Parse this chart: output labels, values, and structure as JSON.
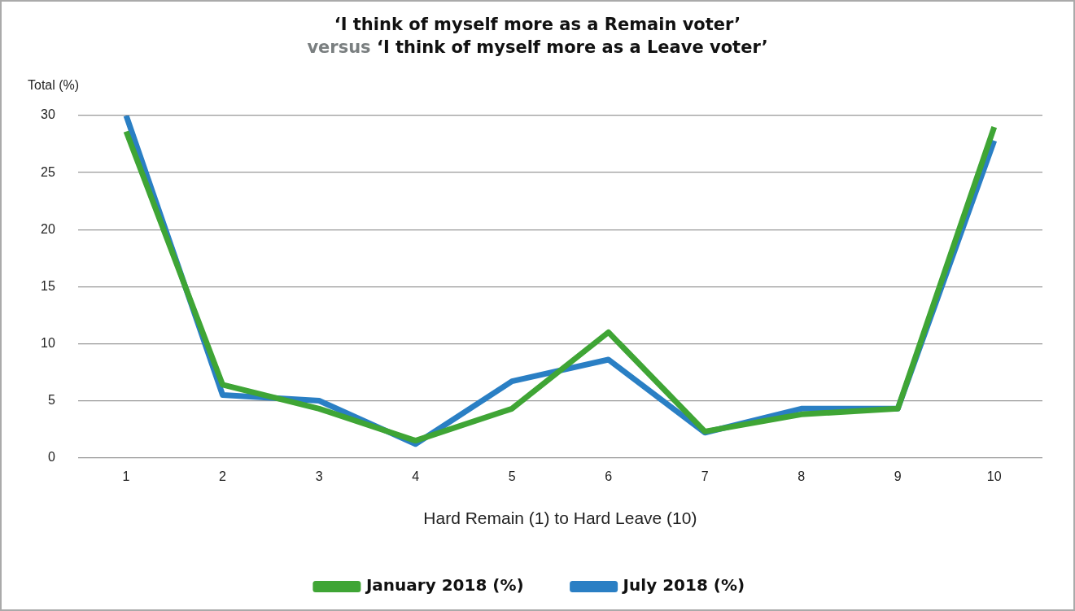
{
  "chart_data": {
    "type": "line",
    "title": "‘I think of myself more as a Remain voter’\nversus ‘I think of myself more as a Leave voter’",
    "xlabel": "Hard Remain (1) to Hard Leave (10)",
    "ylabel": "Total (%)",
    "categories": [
      "1",
      "2",
      "3",
      "4",
      "5",
      "6",
      "7",
      "8",
      "9",
      "10"
    ],
    "series": [
      {
        "name": "January 2018 (%)",
        "color": "#3fa535",
        "values": [
          28.6,
          6.4,
          4.3,
          1.5,
          4.3,
          11.0,
          2.3,
          3.8,
          4.3,
          29.0
        ]
      },
      {
        "name": "July 2018 (%)",
        "color": "#2a7fc4",
        "values": [
          30.0,
          5.5,
          5.0,
          1.2,
          6.7,
          8.6,
          2.2,
          4.3,
          4.3,
          27.8
        ]
      }
    ],
    "ylim": [
      0,
      30
    ],
    "yticks": [
      0,
      5,
      10,
      15,
      20,
      25,
      30
    ],
    "grid": "y",
    "legend": "bottom",
    "marker": "none",
    "line_style": "solid"
  }
}
